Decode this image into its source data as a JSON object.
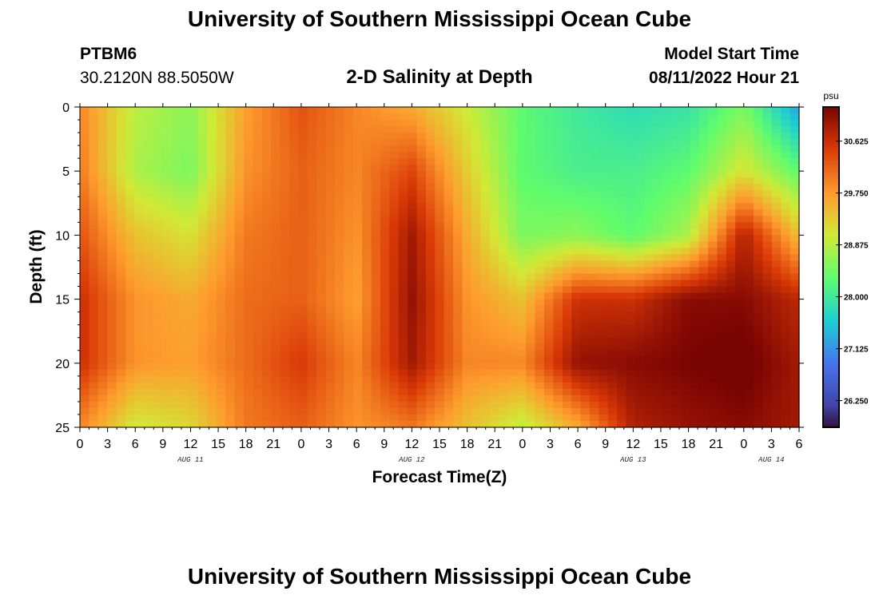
{
  "header": {
    "title": "University of Southern Mississippi Ocean Cube",
    "station_id": "PTBM6",
    "coordinates": "30.2120N  88.5050W",
    "subtitle": "2-D Salinity at Depth",
    "model_start_label": "Model Start Time",
    "model_start_value": "08/11/2022 Hour 21"
  },
  "footer": {
    "title": "University of Southern Mississippi Ocean Cube"
  },
  "chart_data": {
    "type": "heatmap",
    "title": "2-D Salinity at Depth",
    "xlabel": "Forecast Time(Z)",
    "ylabel": "Depth (ft)",
    "x_start_hour": 0,
    "x_end_hour": 78,
    "x_tick_labels": [
      "0",
      "3",
      "6",
      "9",
      "12",
      "15",
      "18",
      "21",
      "0",
      "3",
      "6",
      "9",
      "12",
      "15",
      "18",
      "21",
      "0",
      "3",
      "6",
      "9",
      "12",
      "15",
      "18",
      "21",
      "0",
      "3",
      "6"
    ],
    "date_labels": [
      {
        "label": "AUG 11",
        "hour": 12
      },
      {
        "label": "AUG 12",
        "hour": 36
      },
      {
        "label": "AUG 13",
        "hour": 60
      },
      {
        "label": "AUG 14",
        "hour": 75
      }
    ],
    "y_ticks": [
      0,
      5,
      10,
      15,
      20,
      25
    ],
    "ylim": [
      0,
      25
    ],
    "colorbar": {
      "unit": "psu",
      "min": 25.8,
      "max": 31.2,
      "ticks": [
        "30.625",
        "29.750",
        "28.875",
        "28.000",
        "27.125",
        "26.250"
      ]
    },
    "grid_times_hours": [
      0,
      6,
      12,
      18,
      24,
      30,
      36,
      42,
      48,
      54,
      60,
      66,
      72,
      78
    ],
    "grid_depths_ft": [
      0,
      5,
      10,
      15,
      20,
      25
    ],
    "salinity_psu": [
      [
        29.9,
        28.9,
        28.6,
        29.7,
        30.3,
        29.9,
        29.6,
        29.0,
        28.3,
        28.0,
        27.8,
        27.9,
        28.5,
        27.2
      ],
      [
        30.0,
        28.8,
        28.5,
        29.8,
        30.2,
        29.9,
        30.4,
        29.3,
        28.3,
        28.1,
        28.1,
        28.3,
        29.1,
        28.3
      ],
      [
        30.3,
        29.4,
        29.1,
        30.0,
        30.2,
        29.8,
        30.9,
        29.6,
        28.5,
        28.6,
        28.3,
        28.8,
        30.8,
        29.4
      ],
      [
        30.6,
        29.8,
        29.6,
        30.1,
        30.2,
        29.7,
        31.0,
        29.8,
        29.4,
        30.6,
        30.6,
        31.1,
        31.1,
        30.7
      ],
      [
        30.6,
        29.8,
        29.7,
        30.1,
        30.5,
        29.9,
        30.9,
        29.9,
        29.9,
        31.0,
        31.1,
        31.2,
        31.3,
        30.9
      ],
      [
        29.9,
        29.0,
        29.2,
        30.0,
        30.2,
        29.8,
        30.0,
        29.4,
        28.9,
        29.6,
        30.8,
        31.0,
        31.1,
        30.9
      ]
    ]
  }
}
